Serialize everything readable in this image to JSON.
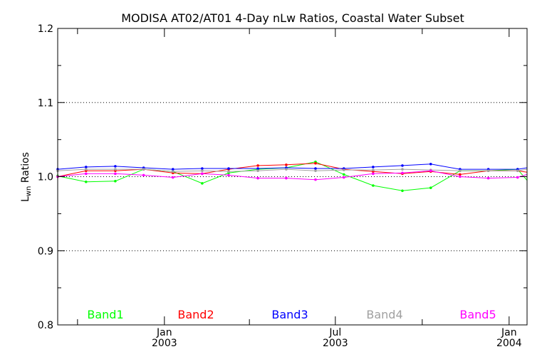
{
  "chart_data": {
    "type": "line",
    "title": "MODISA AT02/AT01 4-Day nLw Ratios, Coastal Water Subset",
    "ylabel_main": "L",
    "ylabel_sub": "wn",
    "ylabel_rest": " Ratios",
    "xlabel": "",
    "ylim": [
      0.8,
      1.2
    ],
    "yticks": [
      "0.8",
      "0.9",
      "1.0",
      "1.1",
      "1.2"
    ],
    "x_date_range": [
      "2002-09-10",
      "2004-01-20"
    ],
    "xticks": [
      {
        "date": "2003-01-01",
        "month": "Jan",
        "year": "2003"
      },
      {
        "date": "2003-07-01",
        "month": "Jul",
        "year": "2003"
      },
      {
        "date": "2004-01-01",
        "month": "Jan",
        "year": "2004"
      }
    ],
    "grid_y": [
      0.9,
      1.0,
      1.1
    ],
    "x": [
      "2002-09-10",
      "2002-10-10",
      "2002-11-10",
      "2002-12-10",
      "2003-01-10",
      "2003-02-10",
      "2003-03-10",
      "2003-04-10",
      "2003-05-10",
      "2003-06-10",
      "2003-07-10",
      "2003-08-10",
      "2003-09-10",
      "2003-10-10",
      "2003-11-10",
      "2003-12-10",
      "2004-01-10",
      "2004-01-20"
    ],
    "series": [
      {
        "name": "Band1",
        "color": "#00ff00",
        "values": [
          1.001,
          0.993,
          0.994,
          1.01,
          1.007,
          0.991,
          1.005,
          1.01,
          1.012,
          1.02,
          1.003,
          0.988,
          0.981,
          0.985,
          1.008,
          1.008,
          1.01,
          0.995
        ]
      },
      {
        "name": "Band2",
        "color": "#ff0000",
        "values": [
          1.0,
          1.008,
          1.008,
          1.01,
          1.005,
          1.004,
          1.01,
          1.015,
          1.016,
          1.018,
          1.01,
          1.007,
          1.004,
          1.007,
          1.003,
          1.008,
          1.008,
          1.006
        ]
      },
      {
        "name": "Band3",
        "color": "#0000ff",
        "values": [
          1.01,
          1.013,
          1.014,
          1.012,
          1.01,
          1.011,
          1.011,
          1.011,
          1.012,
          1.011,
          1.011,
          1.013,
          1.015,
          1.017,
          1.01,
          1.01,
          1.01,
          1.012
        ]
      },
      {
        "name": "Band4",
        "color": "#a0a0a0",
        "values": [
          1.008,
          1.01,
          1.01,
          1.01,
          1.007,
          1.008,
          1.007,
          1.008,
          1.01,
          1.008,
          1.009,
          1.009,
          1.01,
          1.009,
          1.008,
          1.008,
          1.008,
          1.01
        ]
      },
      {
        "name": "Band5",
        "color": "#ff00ff",
        "values": [
          1.0,
          1.004,
          1.004,
          1.002,
          0.999,
          1.004,
          1.002,
          0.998,
          0.998,
          0.996,
          0.999,
          1.004,
          1.005,
          1.008,
          1.0,
          0.998,
          0.999,
          1.003
        ]
      }
    ],
    "grid": true,
    "legend_placement": "bottom-inside"
  }
}
